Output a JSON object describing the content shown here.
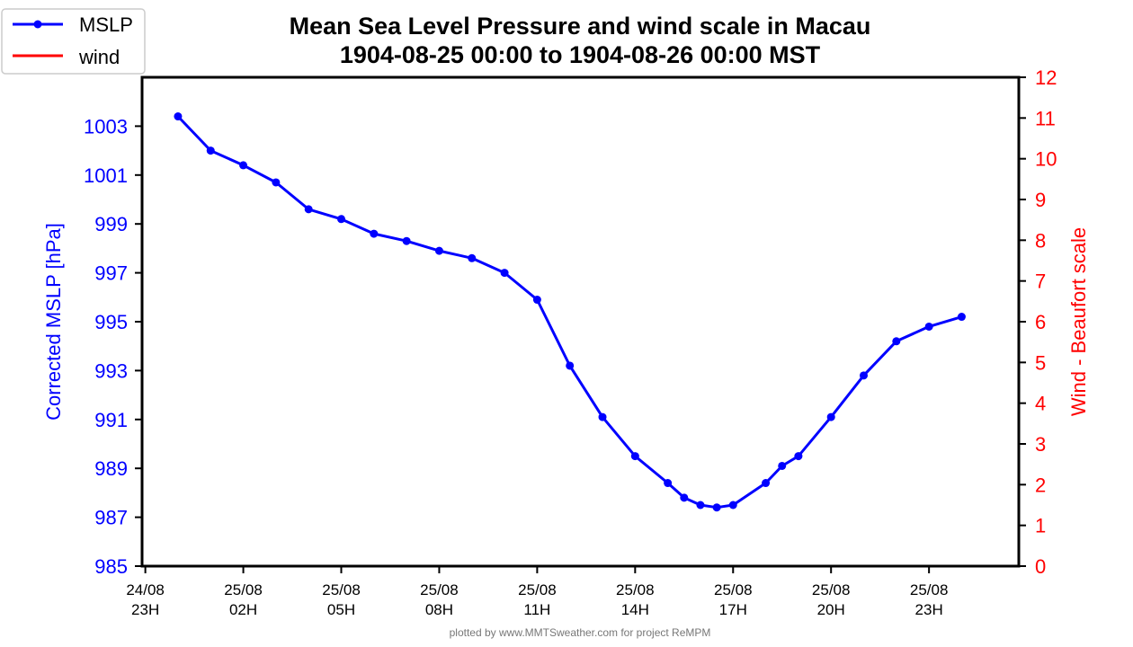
{
  "chart_data": {
    "type": "line",
    "title": "Mean Sea Level Pressure and wind scale in Macau",
    "subtitle": "1904-08-25 00:00 to 1904-08-26 00:00 MST",
    "ylabel_left": "Corrected MSLP [hPa]",
    "ylabel_right": "Wind - Beaufort scale",
    "ylim_left": [
      985,
      1005
    ],
    "ylim_right": [
      0,
      12
    ],
    "xlim_hours": [
      -1.1,
      25.75
    ],
    "yticks_left": [
      985,
      987,
      989,
      991,
      993,
      995,
      997,
      999,
      1001,
      1003
    ],
    "yticks_right": [
      0,
      1,
      2,
      3,
      4,
      5,
      6,
      7,
      8,
      9,
      10,
      11,
      12
    ],
    "xticks": [
      {
        "hour": -1,
        "date": "24/08",
        "time": "23H"
      },
      {
        "hour": 2,
        "date": "25/08",
        "time": "02H"
      },
      {
        "hour": 5,
        "date": "25/08",
        "time": "05H"
      },
      {
        "hour": 8,
        "date": "25/08",
        "time": "08H"
      },
      {
        "hour": 11,
        "date": "25/08",
        "time": "11H"
      },
      {
        "hour": 14,
        "date": "25/08",
        "time": "14H"
      },
      {
        "hour": 17,
        "date": "25/08",
        "time": "17H"
      },
      {
        "hour": 20,
        "date": "25/08",
        "time": "20H"
      },
      {
        "hour": 23,
        "date": "25/08",
        "time": "23H"
      }
    ],
    "series": [
      {
        "name": "MSLP",
        "color": "#0000ff",
        "axis": "left",
        "x": [
          0,
          1,
          2,
          3,
          4,
          5,
          6,
          7,
          8,
          9,
          10,
          11,
          12,
          13,
          14,
          15,
          15.5,
          16,
          16.5,
          17,
          18,
          18.5,
          19,
          20,
          21,
          22,
          23,
          24
        ],
        "values": [
          1003.4,
          1002.0,
          1001.4,
          1000.7,
          999.6,
          999.2,
          998.6,
          998.3,
          997.9,
          997.6,
          997.0,
          995.9,
          993.2,
          991.1,
          989.5,
          988.4,
          987.8,
          987.5,
          987.4,
          987.5,
          988.4,
          989.1,
          989.5,
          991.1,
          992.8,
          994.2,
          994.8,
          995.2
        ]
      },
      {
        "name": "wind",
        "color": "#ff0000",
        "axis": "right",
        "x": [],
        "values": []
      }
    ],
    "legend_position": "top-left",
    "credit": "plotted by www.MMTSweather.com for project ReMPM"
  }
}
